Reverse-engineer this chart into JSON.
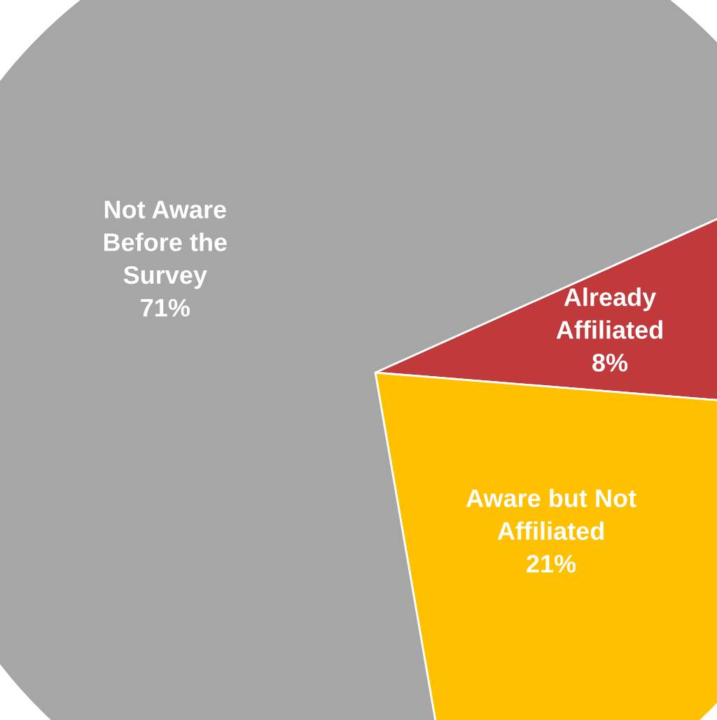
{
  "chart_data": {
    "type": "pie",
    "categories": [
      "Already\nAffiliated",
      "Aware but Not\nAffiliated",
      "Not Aware\nBefore the\nSurvey"
    ],
    "values": [
      8,
      21,
      71
    ],
    "value_labels": [
      "8%",
      "21%",
      "71%"
    ],
    "colors": [
      "#c0393b",
      "#ffc000",
      "#a6a6a6"
    ]
  }
}
